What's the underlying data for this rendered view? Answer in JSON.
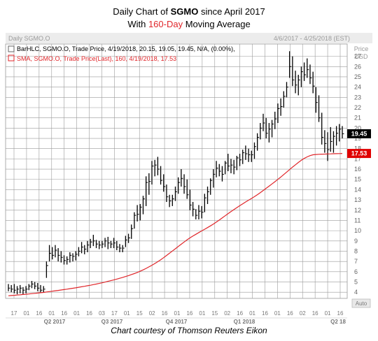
{
  "header": {
    "line1_prefix": "Daily Chart of ",
    "line1_ticker": "SGMO",
    "line1_suffix": " since April 2017",
    "line2_prefix": "With ",
    "line2_highlight": "160-Day",
    "line2_suffix": " Moving Average"
  },
  "panel": {
    "name": "Daily SGMO.O",
    "date_range": "4/6/2017 - 4/25/2018 (EST)",
    "price_unit_line1": "Price",
    "price_unit_line2": "USD",
    "auto_label": "Auto"
  },
  "legend": {
    "bar_series": "BarHLC, SGMO.O, Trade Price, 4/19/2018, 20.15, 19.05, 19.45, N/A, (0.00%),",
    "sma_series": "SMA, SGMO.O, Trade Price(Last), 160, 4/19/2018, 17.53"
  },
  "colors": {
    "bars": "#000000",
    "sma": "#e0262a",
    "grid": "#9a9a9a",
    "accent": "#e0262a"
  },
  "footer": {
    "credit": "Chart courtesy of Thomson Reuters Eikon"
  },
  "chart_data": {
    "type": "bar",
    "ylim": [
      3.4,
      28.2
    ],
    "y_ticks": [
      4,
      5,
      6,
      7,
      8,
      9,
      10,
      11,
      12,
      13,
      14,
      15,
      16,
      17,
      18,
      19,
      20,
      21,
      22,
      23,
      24,
      25,
      26,
      27
    ],
    "x_day_labels": [
      "17",
      "01",
      "16",
      "01",
      "16",
      "01",
      "16",
      "03",
      "17",
      "01",
      "15",
      "02",
      "16",
      "01",
      "16",
      "01",
      "15",
      "02",
      "16",
      "01",
      "16",
      "01",
      "16",
      "02",
      "16",
      "01",
      "16"
    ],
    "x_quarter_labels": [
      "Q2 2017",
      "Q3 2017",
      "Q4 2017",
      "Q1 2018",
      "Q2 18"
    ],
    "last_price": 19.45,
    "sma_last": 17.53,
    "series": [
      {
        "name": "BarHLC",
        "kind": "hlc",
        "high": [
          4.8,
          4.7,
          4.8,
          4.6,
          4.7,
          4.5,
          4.6,
          4.8,
          5.1,
          5.0,
          4.9,
          4.7,
          4.6,
          7.0,
          8.6,
          8.4,
          8.6,
          8.3,
          8.0,
          7.6,
          7.5,
          7.9,
          7.8,
          8.0,
          8.4,
          8.9,
          8.6,
          9.0,
          9.2,
          9.6,
          9.1,
          9.0,
          9.0,
          9.3,
          9.4,
          9.0,
          9.3,
          9.0,
          8.7,
          8.6,
          9.5,
          9.7,
          10.6,
          11.8,
          12.5,
          12.6,
          13.4,
          15.3,
          15.6,
          16.8,
          16.9,
          17.2,
          16.3,
          15.5,
          14.5,
          13.5,
          13.5,
          14.3,
          15.2,
          16.0,
          15.5,
          15.0,
          14.0,
          12.8,
          12.1,
          12.5,
          12.4,
          13.6,
          14.3,
          15.1,
          16.0,
          16.8,
          16.5,
          16.3,
          16.8,
          17.5,
          17.0,
          16.9,
          17.3,
          17.5,
          17.9,
          18.3,
          18.0,
          17.8,
          18.6,
          19.5,
          20.5,
          21.4,
          21.0,
          20.5,
          20.8,
          21.6,
          22.4,
          22.9,
          23.6,
          24.5,
          27.5,
          27.0,
          25.6,
          25.2,
          26.0,
          26.4,
          26.8,
          26.2,
          25.5,
          24.0,
          23.2,
          21.5,
          19.8,
          19.6,
          20.1,
          19.7,
          20.2,
          20.4,
          20.2
        ],
        "low": [
          4.1,
          4.0,
          3.9,
          3.8,
          3.9,
          3.8,
          3.9,
          4.2,
          4.4,
          4.3,
          4.1,
          4.0,
          4.0,
          5.4,
          7.0,
          7.2,
          7.4,
          7.0,
          6.9,
          6.7,
          6.7,
          6.9,
          7.0,
          7.1,
          7.5,
          7.8,
          7.7,
          7.9,
          8.3,
          8.5,
          8.3,
          8.2,
          8.3,
          8.4,
          8.2,
          8.3,
          8.3,
          8.1,
          7.9,
          7.9,
          8.4,
          8.8,
          9.2,
          10.2,
          10.9,
          11.0,
          11.6,
          12.4,
          13.5,
          14.5,
          15.3,
          15.4,
          14.5,
          13.8,
          12.8,
          12.3,
          12.4,
          12.9,
          13.6,
          14.3,
          13.6,
          13.1,
          12.0,
          11.4,
          11.1,
          11.1,
          11.2,
          11.8,
          12.6,
          13.5,
          14.2,
          15.2,
          15.3,
          14.8,
          15.5,
          15.8,
          15.6,
          15.5,
          15.9,
          16.3,
          16.5,
          16.9,
          16.7,
          16.7,
          17.0,
          17.8,
          18.9,
          19.7,
          19.0,
          18.6,
          19.1,
          19.9,
          20.5,
          21.2,
          22.0,
          23.0,
          24.9,
          24.1,
          23.4,
          23.2,
          24.0,
          24.6,
          24.9,
          24.3,
          23.4,
          21.5,
          20.6,
          18.4,
          17.6,
          16.8,
          17.7,
          17.6,
          18.3,
          18.7,
          19.0
        ],
        "close": [
          4.4,
          4.3,
          4.2,
          4.3,
          4.4,
          4.2,
          4.3,
          4.6,
          4.8,
          4.6,
          4.4,
          4.2,
          4.3,
          6.6,
          7.8,
          7.6,
          8.1,
          7.6,
          7.4,
          7.1,
          7.2,
          7.6,
          7.5,
          7.7,
          8.0,
          8.4,
          8.2,
          8.6,
          8.9,
          9.0,
          8.7,
          8.6,
          8.7,
          9.0,
          8.8,
          8.7,
          8.8,
          8.4,
          8.3,
          8.3,
          9.1,
          9.3,
          10.2,
          11.5,
          11.6,
          12.3,
          13.1,
          14.7,
          14.8,
          16.3,
          16.4,
          16.0,
          14.9,
          14.3,
          13.3,
          12.9,
          13.1,
          13.8,
          14.7,
          15.1,
          14.3,
          13.5,
          12.5,
          12.1,
          11.5,
          11.9,
          11.8,
          13.2,
          13.8,
          14.9,
          15.5,
          16.1,
          15.8,
          15.5,
          16.6,
          16.3,
          16.4,
          16.2,
          17.1,
          16.9,
          17.6,
          17.5,
          17.4,
          17.4,
          18.2,
          19.1,
          20.0,
          20.5,
          19.5,
          19.9,
          20.4,
          20.9,
          21.9,
          22.1,
          23.1,
          24.0,
          26.0,
          24.7,
          24.2,
          24.7,
          25.5,
          25.2,
          25.7,
          24.9,
          24.1,
          22.5,
          21.0,
          19.1,
          18.5,
          17.9,
          18.7,
          19.2,
          19.5,
          19.9,
          19.45
        ]
      },
      {
        "name": "SMA",
        "kind": "line",
        "values": [
          3.65,
          3.68,
          3.7,
          3.73,
          3.75,
          3.78,
          3.8,
          3.83,
          3.86,
          3.89,
          3.92,
          3.95,
          3.98,
          4.02,
          4.06,
          4.1,
          4.14,
          4.18,
          4.22,
          4.26,
          4.3,
          4.35,
          4.39,
          4.43,
          4.48,
          4.53,
          4.58,
          4.63,
          4.68,
          4.74,
          4.8,
          4.86,
          4.92,
          4.99,
          5.06,
          5.13,
          5.2,
          5.28,
          5.36,
          5.44,
          5.53,
          5.62,
          5.72,
          5.82,
          5.93,
          6.05,
          6.18,
          6.32,
          6.47,
          6.63,
          6.8,
          6.98,
          7.17,
          7.37,
          7.58,
          7.8,
          8.02,
          8.24,
          8.46,
          8.68,
          8.9,
          9.1,
          9.3,
          9.48,
          9.65,
          9.82,
          9.98,
          10.14,
          10.3,
          10.47,
          10.65,
          10.84,
          11.04,
          11.24,
          11.45,
          11.66,
          11.86,
          12.06,
          12.25,
          12.44,
          12.62,
          12.8,
          12.97,
          13.14,
          13.32,
          13.51,
          13.71,
          13.92,
          14.13,
          14.34,
          14.56,
          14.78,
          15.0,
          15.23,
          15.47,
          15.71,
          15.96,
          16.2,
          16.43,
          16.65,
          16.86,
          17.05,
          17.2,
          17.32,
          17.4,
          17.43,
          17.45,
          17.46,
          17.47,
          17.48,
          17.49,
          17.5,
          17.51,
          17.52,
          17.53
        ]
      }
    ]
  }
}
